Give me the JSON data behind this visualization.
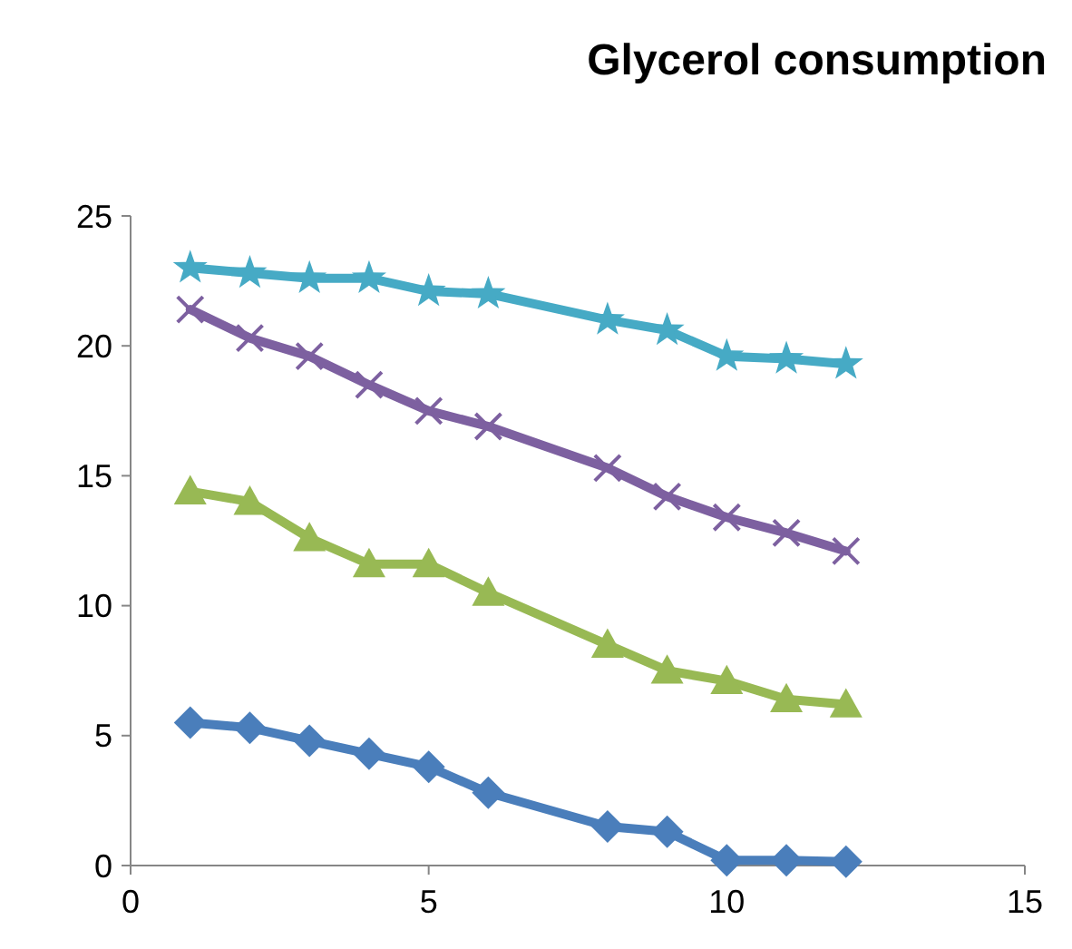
{
  "chart_data": {
    "type": "line",
    "title": "Glycerol consumption",
    "x": [
      1,
      2,
      3,
      4,
      5,
      6,
      8,
      9,
      10,
      11,
      12
    ],
    "xlim": [
      0,
      15
    ],
    "xticks": [
      0,
      5,
      10,
      15
    ],
    "ylim": [
      0,
      25
    ],
    "yticks": [
      0,
      5,
      10,
      15,
      20,
      25
    ],
    "grid": false,
    "line_style": "solid",
    "series": [
      {
        "color": "#4a7ebb",
        "marker": "diamond",
        "values": [
          5.5,
          5.3,
          4.8,
          4.3,
          3.8,
          2.8,
          1.5,
          1.3,
          0.2,
          0.2,
          0.15
        ]
      },
      {
        "color": "#98b954",
        "marker": "triangle",
        "values": [
          14.4,
          14.0,
          12.6,
          11.6,
          11.6,
          10.5,
          8.5,
          7.5,
          7.1,
          6.4,
          6.2
        ]
      },
      {
        "color": "#7d60a0",
        "marker": "cross",
        "values": [
          21.4,
          20.3,
          19.6,
          18.5,
          17.5,
          16.9,
          15.3,
          14.2,
          13.4,
          12.8,
          12.1
        ]
      },
      {
        "color": "#46aac5",
        "marker": "star",
        "values": [
          23.0,
          22.8,
          22.6,
          22.6,
          22.1,
          22.0,
          21.0,
          20.6,
          19.6,
          19.5,
          19.3
        ]
      }
    ]
  }
}
